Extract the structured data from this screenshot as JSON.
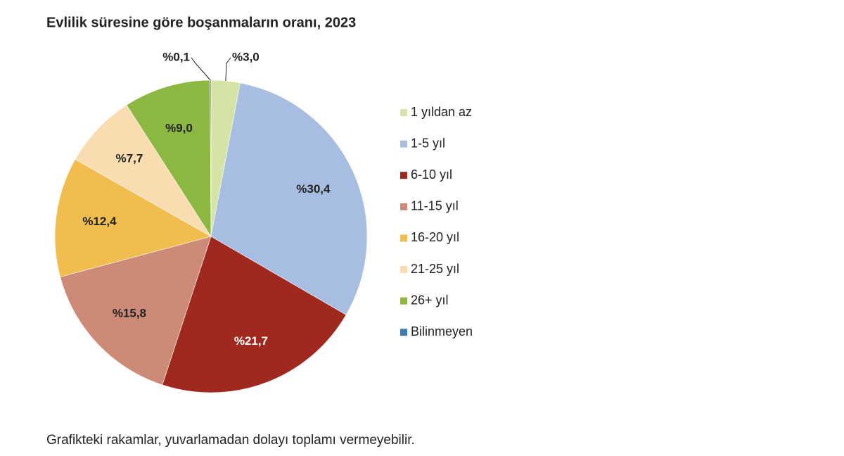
{
  "chart_data": {
    "type": "pie",
    "title": "Evlilik süresine göre boşanmaların oranı, 2023",
    "categories": [
      "1 yıldan az",
      "1-5 yıl",
      "6-10 yıl",
      "11-15 yıl",
      "16-20 yıl",
      "21-25 yıl",
      "26+ yıl",
      "Bilinmeyen"
    ],
    "values": [
      3.0,
      30.4,
      21.7,
      15.8,
      12.4,
      7.7,
      9.0,
      0.1
    ],
    "value_labels": [
      "%3,0",
      "%30,4",
      "%21,7",
      "%15,8",
      "%12,4",
      "%7,7",
      "%9,0",
      "%0,1"
    ],
    "colors": [
      "#d6e3a6",
      "#a8bde2",
      "#a0291f",
      "#cd8b77",
      "#f1bd4e",
      "#f9ddb0",
      "#8cb842",
      "#3b7db4"
    ],
    "legend": "right",
    "footnote": "Grafikteki rakamlar, yuvarlamadan dolayı toplamı vermeyebilir."
  }
}
